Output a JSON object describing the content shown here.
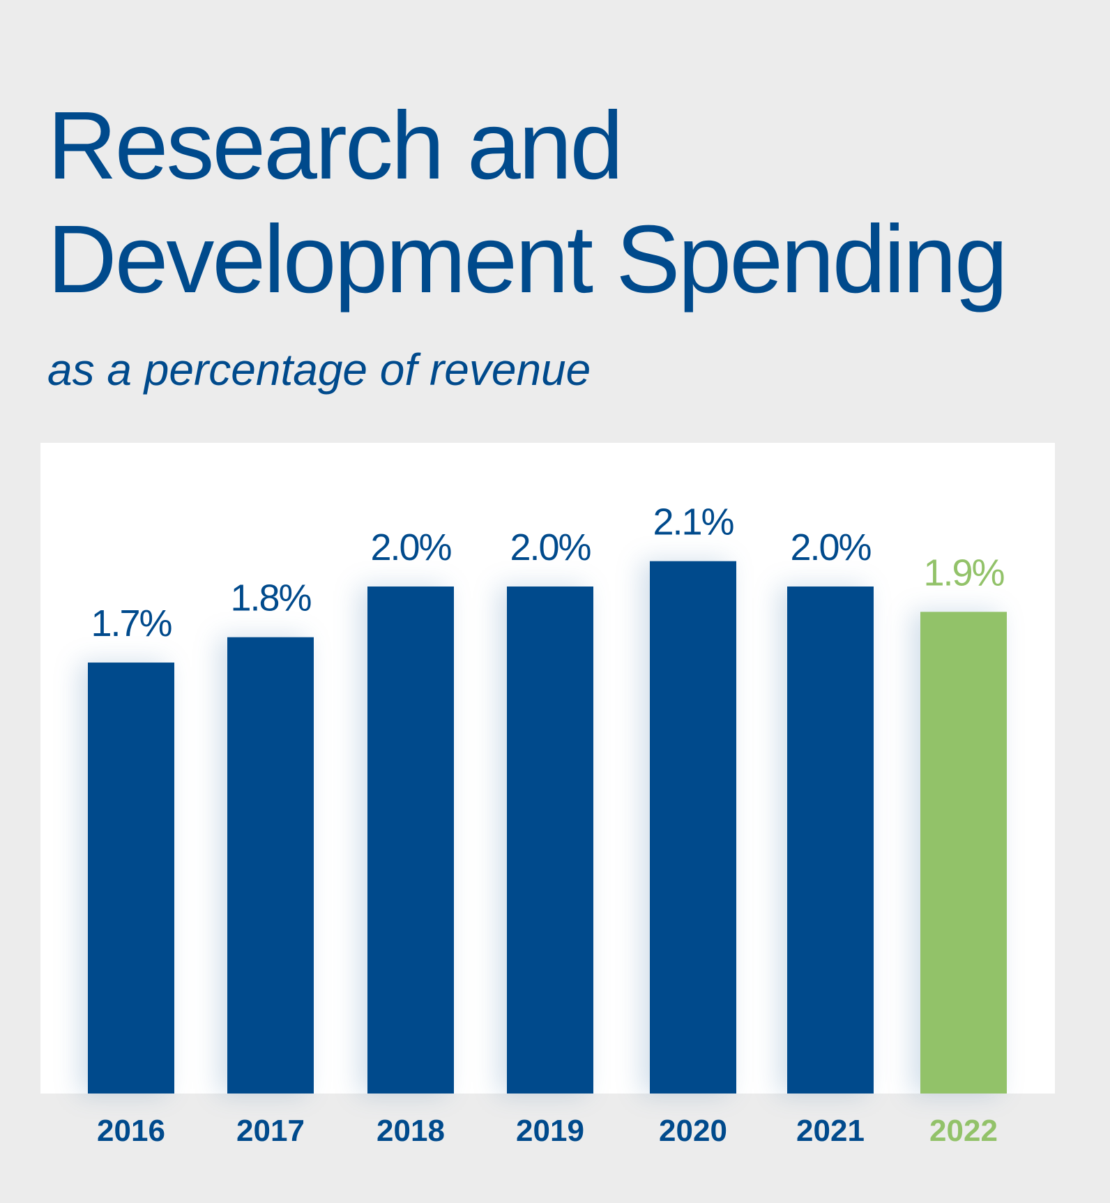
{
  "chart_data": {
    "type": "bar",
    "title": "Research and Development Spending",
    "subtitle": "as a percentage of revenue",
    "categories": [
      "2016",
      "2017",
      "2018",
      "2019",
      "2020",
      "2021",
      "2022"
    ],
    "values": [
      1.7,
      1.8,
      2.0,
      2.0,
      2.1,
      2.0,
      1.9
    ],
    "value_labels": [
      "1.7%",
      "1.8%",
      "2.0%",
      "2.0%",
      "2.1%",
      "2.0%",
      "1.9%"
    ],
    "colors": [
      "#004a8c",
      "#004a8c",
      "#004a8c",
      "#004a8c",
      "#004a8c",
      "#004a8c",
      "#92c269"
    ],
    "ylim": [
      0,
      2.5
    ]
  }
}
